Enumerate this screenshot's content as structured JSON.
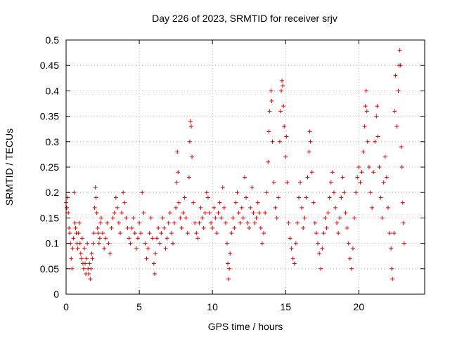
{
  "chart_data": {
    "type": "scatter",
    "title": "Day 226 of 2023, SRMTID for receiver srjv",
    "xlabel": "GPS time / hours",
    "ylabel": "SRMTID / TECUs",
    "xlim": [
      0,
      24.5
    ],
    "ylim": [
      0,
      0.5
    ],
    "x_ticks": [
      0,
      5,
      10,
      15,
      20
    ],
    "x_tick_labels": [
      "0",
      "5",
      "10",
      "15",
      "20"
    ],
    "y_ticks": [
      0,
      0.05,
      0.1,
      0.15,
      0.2,
      0.25,
      0.3,
      0.35,
      0.4,
      0.45,
      0.5
    ],
    "y_tick_labels": [
      "0",
      "0.05",
      "0.1",
      "0.15",
      "0.2",
      "0.25",
      "0.3",
      "0.35",
      "0.4",
      "0.45",
      "0.5"
    ],
    "grid": true,
    "marker": "plus",
    "color": "#e00000",
    "series": [
      {
        "name": "SRMTID",
        "points": [
          [
            0.0,
            0.18
          ],
          [
            0.05,
            0.17
          ],
          [
            0.1,
            0.19
          ],
          [
            0.15,
            0.16
          ],
          [
            0.2,
            0.13
          ],
          [
            0.25,
            0.12
          ],
          [
            0.3,
            0.1
          ],
          [
            0.35,
            0.07
          ],
          [
            0.4,
            0.05
          ],
          [
            0.45,
            0.09
          ],
          [
            0.5,
            0.11
          ],
          [
            0.55,
            0.2
          ],
          [
            0.6,
            0.14
          ],
          [
            0.65,
            0.13
          ],
          [
            0.7,
            0.12
          ],
          [
            0.75,
            0.1
          ],
          [
            0.8,
            0.09
          ],
          [
            0.85,
            0.12
          ],
          [
            0.9,
            0.14
          ],
          [
            0.95,
            0.1
          ],
          [
            1.0,
            0.08
          ],
          [
            1.05,
            0.07
          ],
          [
            1.1,
            0.11
          ],
          [
            1.15,
            0.06
          ],
          [
            1.2,
            0.05
          ],
          [
            1.25,
            0.09
          ],
          [
            1.3,
            0.06
          ],
          [
            1.35,
            0.04
          ],
          [
            1.4,
            0.07
          ],
          [
            1.45,
            0.1
          ],
          [
            1.5,
            0.05
          ],
          [
            1.55,
            0.04
          ],
          [
            1.6,
            0.06
          ],
          [
            1.65,
            0.03
          ],
          [
            1.7,
            0.05
          ],
          [
            1.75,
            0.08
          ],
          [
            1.8,
            0.07
          ],
          [
            1.85,
            0.1
          ],
          [
            1.9,
            0.12
          ],
          [
            1.95,
            0.17
          ],
          [
            2.0,
            0.21
          ],
          [
            2.05,
            0.19
          ],
          [
            2.1,
            0.16
          ],
          [
            2.15,
            0.13
          ],
          [
            2.2,
            0.12
          ],
          [
            2.25,
            0.1
          ],
          [
            2.3,
            0.11
          ],
          [
            2.35,
            0.14
          ],
          [
            2.4,
            0.15
          ],
          [
            2.5,
            0.12
          ],
          [
            2.6,
            0.09
          ],
          [
            2.7,
            0.11
          ],
          [
            2.8,
            0.14
          ],
          [
            2.9,
            0.1
          ],
          [
            3.0,
            0.08
          ],
          [
            3.1,
            0.13
          ],
          [
            3.2,
            0.15
          ],
          [
            3.3,
            0.16
          ],
          [
            3.4,
            0.19
          ],
          [
            3.5,
            0.17
          ],
          [
            3.6,
            0.14
          ],
          [
            3.7,
            0.12
          ],
          [
            3.8,
            0.16
          ],
          [
            3.9,
            0.2
          ],
          [
            4.0,
            0.18
          ],
          [
            4.1,
            0.15
          ],
          [
            4.2,
            0.13
          ],
          [
            4.3,
            0.11
          ],
          [
            4.4,
            0.1
          ],
          [
            4.5,
            0.13
          ],
          [
            4.6,
            0.15
          ],
          [
            4.7,
            0.12
          ],
          [
            4.8,
            0.09
          ],
          [
            4.9,
            0.11
          ],
          [
            5.0,
            0.14
          ],
          [
            5.1,
            0.12
          ],
          [
            5.2,
            0.2
          ],
          [
            5.3,
            0.16
          ],
          [
            5.4,
            0.1
          ],
          [
            5.5,
            0.07
          ],
          [
            5.6,
            0.09
          ],
          [
            5.7,
            0.12
          ],
          [
            5.8,
            0.15
          ],
          [
            5.9,
            0.11
          ],
          [
            6.0,
            0.06
          ],
          [
            6.05,
            0.04
          ],
          [
            6.1,
            0.08
          ],
          [
            6.2,
            0.11
          ],
          [
            6.3,
            0.13
          ],
          [
            6.4,
            0.1
          ],
          [
            6.5,
            0.12
          ],
          [
            6.6,
            0.15
          ],
          [
            6.7,
            0.13
          ],
          [
            6.8,
            0.09
          ],
          [
            6.9,
            0.11
          ],
          [
            7.0,
            0.14
          ],
          [
            7.1,
            0.16
          ],
          [
            7.2,
            0.12
          ],
          [
            7.3,
            0.1
          ],
          [
            7.4,
            0.14
          ],
          [
            7.5,
            0.17
          ],
          [
            7.55,
            0.22
          ],
          [
            7.6,
            0.28
          ],
          [
            7.65,
            0.24
          ],
          [
            7.7,
            0.18
          ],
          [
            7.8,
            0.15
          ],
          [
            7.9,
            0.13
          ],
          [
            8.0,
            0.16
          ],
          [
            8.1,
            0.19
          ],
          [
            8.2,
            0.15
          ],
          [
            8.3,
            0.12
          ],
          [
            8.4,
            0.23
          ],
          [
            8.45,
            0.3
          ],
          [
            8.5,
            0.34
          ],
          [
            8.55,
            0.33
          ],
          [
            8.6,
            0.27
          ],
          [
            8.7,
            0.18
          ],
          [
            8.8,
            0.14
          ],
          [
            8.9,
            0.12
          ],
          [
            9.0,
            0.11
          ],
          [
            9.1,
            0.14
          ],
          [
            9.2,
            0.17
          ],
          [
            9.3,
            0.15
          ],
          [
            9.4,
            0.13
          ],
          [
            9.5,
            0.16
          ],
          [
            9.6,
            0.2
          ],
          [
            9.7,
            0.19
          ],
          [
            9.8,
            0.16
          ],
          [
            9.9,
            0.14
          ],
          [
            10.0,
            0.13
          ],
          [
            10.1,
            0.17
          ],
          [
            10.2,
            0.15
          ],
          [
            10.3,
            0.12
          ],
          [
            10.4,
            0.16
          ],
          [
            10.5,
            0.18
          ],
          [
            10.6,
            0.15
          ],
          [
            10.7,
            0.21
          ],
          [
            10.8,
            0.17
          ],
          [
            10.9,
            0.14
          ],
          [
            11.0,
            0.1
          ],
          [
            11.05,
            0.06
          ],
          [
            11.1,
            0.03
          ],
          [
            11.15,
            0.05
          ],
          [
            11.2,
            0.08
          ],
          [
            11.3,
            0.12
          ],
          [
            11.4,
            0.15
          ],
          [
            11.5,
            0.13
          ],
          [
            11.6,
            0.18
          ],
          [
            11.7,
            0.2
          ],
          [
            11.8,
            0.16
          ],
          [
            11.9,
            0.14
          ],
          [
            12.0,
            0.17
          ],
          [
            12.1,
            0.15
          ],
          [
            12.2,
            0.23
          ],
          [
            12.3,
            0.19
          ],
          [
            12.4,
            0.14
          ],
          [
            12.5,
            0.13
          ],
          [
            12.6,
            0.17
          ],
          [
            12.7,
            0.21
          ],
          [
            12.8,
            0.16
          ],
          [
            12.9,
            0.14
          ],
          [
            13.0,
            0.15
          ],
          [
            13.1,
            0.18
          ],
          [
            13.2,
            0.16
          ],
          [
            13.3,
            0.13
          ],
          [
            13.4,
            0.1
          ],
          [
            13.5,
            0.12
          ],
          [
            13.6,
            0.16
          ],
          [
            13.7,
            0.2
          ],
          [
            13.8,
            0.26
          ],
          [
            13.85,
            0.32
          ],
          [
            13.9,
            0.36
          ],
          [
            14.0,
            0.4
          ],
          [
            14.05,
            0.38
          ],
          [
            14.1,
            0.3
          ],
          [
            14.2,
            0.22
          ],
          [
            14.3,
            0.17
          ],
          [
            14.4,
            0.15
          ],
          [
            14.5,
            0.19
          ],
          [
            14.6,
            0.3
          ],
          [
            14.65,
            0.36
          ],
          [
            14.7,
            0.4
          ],
          [
            14.75,
            0.42
          ],
          [
            14.8,
            0.41
          ],
          [
            14.85,
            0.37
          ],
          [
            14.9,
            0.33
          ],
          [
            15.0,
            0.27
          ],
          [
            15.05,
            0.31
          ],
          [
            15.1,
            0.22
          ],
          [
            15.2,
            0.14
          ],
          [
            15.3,
            0.11
          ],
          [
            15.4,
            0.09
          ],
          [
            15.5,
            0.07
          ],
          [
            15.6,
            0.06
          ],
          [
            15.7,
            0.1
          ],
          [
            15.8,
            0.14
          ],
          [
            15.9,
            0.19
          ],
          [
            16.0,
            0.22
          ],
          [
            16.1,
            0.17
          ],
          [
            16.2,
            0.13
          ],
          [
            16.3,
            0.15
          ],
          [
            16.4,
            0.19
          ],
          [
            16.5,
            0.23
          ],
          [
            16.6,
            0.28
          ],
          [
            16.65,
            0.32
          ],
          [
            16.7,
            0.3
          ],
          [
            16.8,
            0.24
          ],
          [
            16.9,
            0.18
          ],
          [
            17.0,
            0.14
          ],
          [
            17.1,
            0.12
          ],
          [
            17.2,
            0.1
          ],
          [
            17.3,
            0.08
          ],
          [
            17.4,
            0.05
          ],
          [
            17.5,
            0.09
          ],
          [
            17.6,
            0.12
          ],
          [
            17.7,
            0.15
          ],
          [
            17.8,
            0.13
          ],
          [
            17.9,
            0.16
          ],
          [
            18.0,
            0.19
          ],
          [
            18.1,
            0.22
          ],
          [
            18.2,
            0.24
          ],
          [
            18.3,
            0.2
          ],
          [
            18.4,
            0.17
          ],
          [
            18.5,
            0.14
          ],
          [
            18.6,
            0.12
          ],
          [
            18.7,
            0.15
          ],
          [
            18.8,
            0.19
          ],
          [
            18.9,
            0.23
          ],
          [
            19.0,
            0.2
          ],
          [
            19.1,
            0.16
          ],
          [
            19.2,
            0.13
          ],
          [
            19.3,
            0.1
          ],
          [
            19.4,
            0.07
          ],
          [
            19.5,
            0.05
          ],
          [
            19.6,
            0.09
          ],
          [
            19.7,
            0.15
          ],
          [
            19.8,
            0.2
          ],
          [
            19.9,
            0.23
          ],
          [
            20.0,
            0.25
          ],
          [
            20.1,
            0.22
          ],
          [
            20.2,
            0.24
          ],
          [
            20.3,
            0.28
          ],
          [
            20.4,
            0.33
          ],
          [
            20.45,
            0.37
          ],
          [
            20.5,
            0.4
          ],
          [
            20.55,
            0.36
          ],
          [
            20.6,
            0.3
          ],
          [
            20.7,
            0.25
          ],
          [
            20.8,
            0.2
          ],
          [
            20.9,
            0.17
          ],
          [
            21.0,
            0.24
          ],
          [
            21.1,
            0.3
          ],
          [
            21.2,
            0.35
          ],
          [
            21.25,
            0.37
          ],
          [
            21.3,
            0.31
          ],
          [
            21.4,
            0.25
          ],
          [
            21.5,
            0.19
          ],
          [
            21.6,
            0.15
          ],
          [
            21.7,
            0.22
          ],
          [
            21.8,
            0.27
          ],
          [
            21.9,
            0.23
          ],
          [
            22.0,
            0.17
          ],
          [
            22.1,
            0.12
          ],
          [
            22.2,
            0.09
          ],
          [
            22.25,
            0.05
          ],
          [
            22.3,
            0.03
          ],
          [
            22.4,
            0.12
          ],
          [
            22.45,
            0.36
          ],
          [
            22.5,
            0.43
          ],
          [
            22.6,
            0.33
          ],
          [
            22.7,
            0.4
          ],
          [
            22.75,
            0.45
          ],
          [
            22.8,
            0.48
          ],
          [
            22.85,
            0.45
          ],
          [
            22.9,
            0.29
          ],
          [
            22.95,
            0.25
          ],
          [
            23.0,
            0.18
          ],
          [
            23.05,
            0.14
          ],
          [
            23.1,
            0.1
          ]
        ]
      }
    ]
  }
}
